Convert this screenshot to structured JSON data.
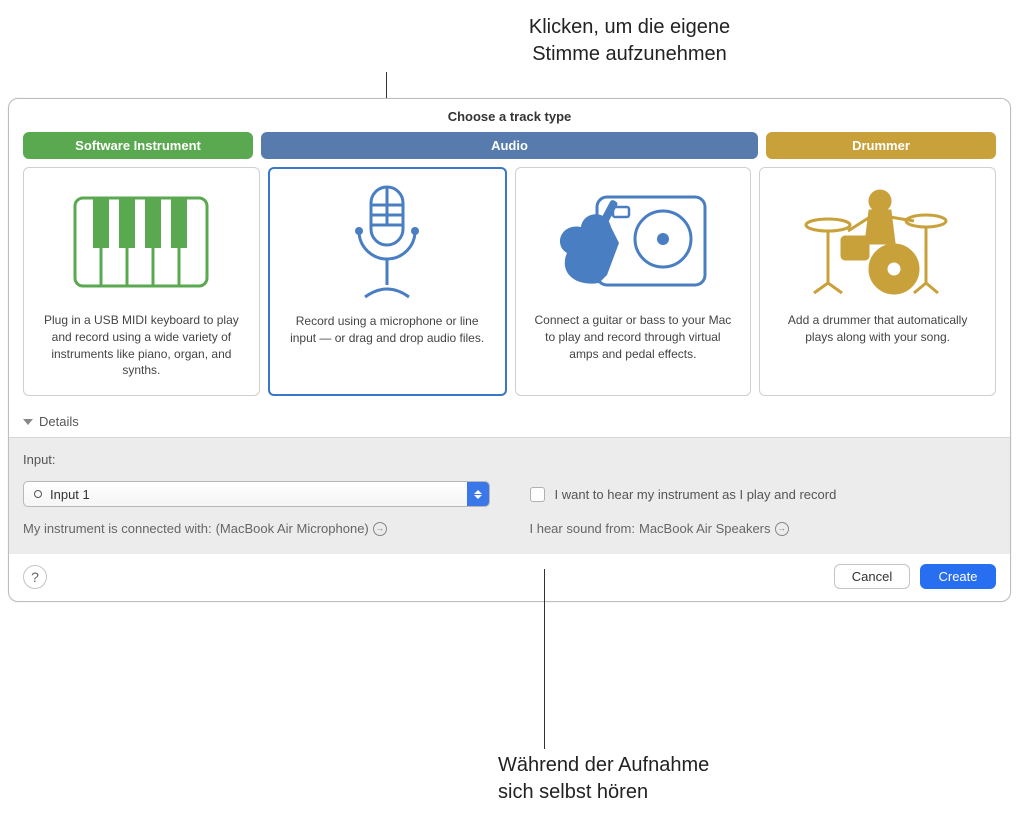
{
  "callouts": {
    "top": "Klicken, um die eigene\nStimme aufzunehmen",
    "bottom": "Während der Aufnahme\nsich selbst hören"
  },
  "dialog": {
    "title": "Choose a track type",
    "tabs": {
      "software": {
        "label": "Software Instrument",
        "color": "#5aa850"
      },
      "audio": {
        "label": "Audio",
        "color": "#567bac"
      },
      "drummer": {
        "label": "Drummer",
        "color": "#c9a13b"
      }
    },
    "cards": {
      "software": {
        "desc": "Plug in a USB MIDI keyboard to play and record using a wide variety of instruments like piano, organ, and synths.",
        "icon_color": "#5aa850"
      },
      "mic": {
        "desc": "Record using a microphone or line input — or drag and drop audio files.",
        "icon_color": "#4a7ec2",
        "selected": true
      },
      "guitar": {
        "desc": "Connect a guitar or bass to your Mac to play and record through virtual amps and pedal effects.",
        "icon_color": "#4a7ec2"
      },
      "drummer": {
        "desc": "Add a drummer that automatically plays along with your song.",
        "icon_color": "#c9a13b"
      }
    },
    "details_label": "Details",
    "input": {
      "label": "Input:",
      "selected": "Input 1"
    },
    "connected": {
      "prefix": "My instrument is connected with:",
      "device": "(MacBook Air Microphone)"
    },
    "monitor_label": "I want to hear my instrument as I play and record",
    "hear": {
      "prefix": "I hear sound from:",
      "device": "MacBook Air Speakers"
    },
    "buttons": {
      "help": "?",
      "cancel": "Cancel",
      "create": "Create"
    }
  },
  "colors": {
    "selection_border": "#3a77c8",
    "panel_bg": "#ececec",
    "primary_btn": "#286ef0"
  }
}
